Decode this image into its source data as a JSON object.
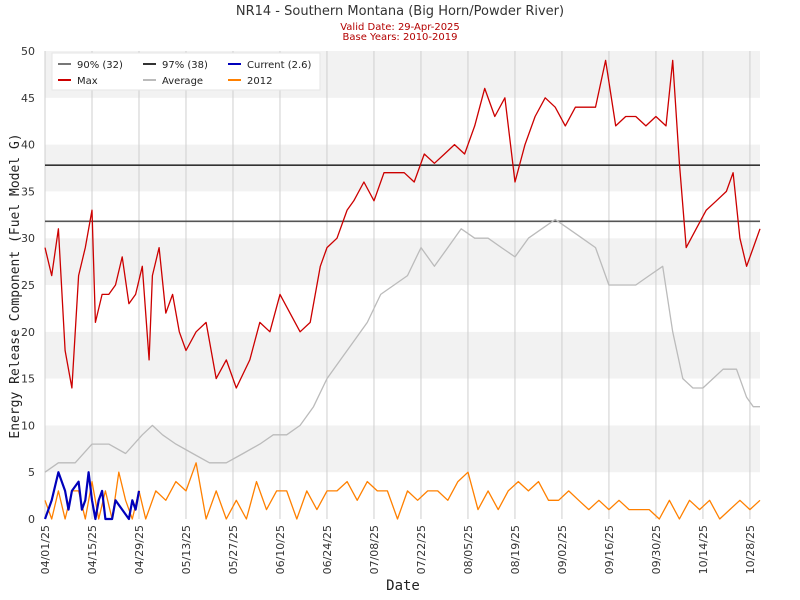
{
  "chart_data": {
    "type": "line",
    "title": "NR14 - Southern Montana (Big Horn/Powder River)",
    "subtitle_lines": [
      "Valid Date: 29-Apr-2025",
      "Base Years: 2010-2019"
    ],
    "xlabel": "Date",
    "ylabel": "Energy Release Component (Fuel Model G)",
    "x_ticks": [
      "04/01/25",
      "04/15/25",
      "04/29/25",
      "05/13/25",
      "05/27/25",
      "06/10/25",
      "06/24/25",
      "07/08/25",
      "07/22/25",
      "08/05/25",
      "08/19/25",
      "09/02/25",
      "09/16/25",
      "09/30/25",
      "10/14/25",
      "10/28/25"
    ],
    "y_ticks": [
      0,
      5,
      10,
      15,
      20,
      25,
      30,
      35,
      40,
      45,
      50
    ],
    "ylim": [
      0,
      50
    ],
    "x_start": "2025-04-01",
    "x_end": "2025-10-31",
    "grid": true,
    "legend_position": "top-left",
    "thresholds": [
      {
        "name": "90% (32)",
        "value": 31.8,
        "color": "#555555"
      },
      {
        "name": "97% (38)",
        "value": 37.8,
        "color": "#333333"
      }
    ],
    "legend": [
      {
        "name": "90% (32)",
        "color": "#777777"
      },
      {
        "name": "97% (38)",
        "color": "#333333"
      },
      {
        "name": "Current (2.6)",
        "color": "#0000bb"
      },
      {
        "name": "Max",
        "color": "#cc0000"
      },
      {
        "name": "Average",
        "color": "#bbbbbb"
      },
      {
        "name": "2012",
        "color": "#ff8000"
      }
    ],
    "series": [
      {
        "name": "Max",
        "color": "#cc0000",
        "points": [
          [
            "04/01/25",
            29
          ],
          [
            "04/03/25",
            26
          ],
          [
            "04/05/25",
            31
          ],
          [
            "04/07/25",
            18
          ],
          [
            "04/09/25",
            14
          ],
          [
            "04/11/25",
            26
          ],
          [
            "04/13/25",
            29
          ],
          [
            "04/15/25",
            33
          ],
          [
            "04/16/25",
            21
          ],
          [
            "04/18/25",
            24
          ],
          [
            "04/20/25",
            24
          ],
          [
            "04/22/25",
            25
          ],
          [
            "04/24/25",
            28
          ],
          [
            "04/26/25",
            23
          ],
          [
            "04/28/25",
            24
          ],
          [
            "04/30/25",
            27
          ],
          [
            "05/02/25",
            17
          ],
          [
            "05/03/25",
            26
          ],
          [
            "05/05/25",
            29
          ],
          [
            "05/07/25",
            22
          ],
          [
            "05/09/25",
            24
          ],
          [
            "05/11/25",
            20
          ],
          [
            "05/13/25",
            18
          ],
          [
            "05/16/25",
            20
          ],
          [
            "05/19/25",
            21
          ],
          [
            "05/22/25",
            15
          ],
          [
            "05/25/25",
            17
          ],
          [
            "05/28/25",
            14
          ],
          [
            "06/01/25",
            17
          ],
          [
            "06/04/25",
            21
          ],
          [
            "06/07/25",
            20
          ],
          [
            "06/10/25",
            24
          ],
          [
            "06/13/25",
            22
          ],
          [
            "06/16/25",
            20
          ],
          [
            "06/19/25",
            21
          ],
          [
            "06/22/25",
            27
          ],
          [
            "06/24/25",
            29
          ],
          [
            "06/27/25",
            30
          ],
          [
            "06/30/25",
            33
          ],
          [
            "07/02/25",
            34
          ],
          [
            "07/05/25",
            36
          ],
          [
            "07/08/25",
            34
          ],
          [
            "07/11/25",
            37
          ],
          [
            "07/14/25",
            37
          ],
          [
            "07/17/25",
            37
          ],
          [
            "07/20/25",
            36
          ],
          [
            "07/23/25",
            39
          ],
          [
            "07/26/25",
            38
          ],
          [
            "07/29/25",
            39
          ],
          [
            "08/01/25",
            40
          ],
          [
            "08/04/25",
            39
          ],
          [
            "08/07/25",
            42
          ],
          [
            "08/10/25",
            46
          ],
          [
            "08/13/25",
            43
          ],
          [
            "08/16/25",
            45
          ],
          [
            "08/19/25",
            36
          ],
          [
            "08/22/25",
            40
          ],
          [
            "08/25/25",
            43
          ],
          [
            "08/28/25",
            45
          ],
          [
            "08/31/25",
            44
          ],
          [
            "09/03/25",
            42
          ],
          [
            "09/06/25",
            44
          ],
          [
            "09/09/25",
            44
          ],
          [
            "09/12/25",
            44
          ],
          [
            "09/15/25",
            49
          ],
          [
            "09/18/25",
            42
          ],
          [
            "09/21/25",
            43
          ],
          [
            "09/24/25",
            43
          ],
          [
            "09/27/25",
            42
          ],
          [
            "09/30/25",
            43
          ],
          [
            "10/03/25",
            42
          ],
          [
            "10/05/25",
            49
          ],
          [
            "10/07/25",
            38
          ],
          [
            "10/09/25",
            29
          ],
          [
            "10/12/25",
            31
          ],
          [
            "10/15/25",
            33
          ],
          [
            "10/18/25",
            34
          ],
          [
            "10/21/25",
            35
          ],
          [
            "10/23/25",
            37
          ],
          [
            "10/25/25",
            30
          ],
          [
            "10/27/25",
            27
          ],
          [
            "10/29/25",
            29
          ],
          [
            "10/31/25",
            31
          ]
        ]
      },
      {
        "name": "Average",
        "color": "#bbbbbb",
        "points": [
          [
            "04/01/25",
            5
          ],
          [
            "04/05/25",
            6
          ],
          [
            "04/10/25",
            6
          ],
          [
            "04/15/25",
            8
          ],
          [
            "04/20/25",
            8
          ],
          [
            "04/25/25",
            7
          ],
          [
            "04/30/25",
            9
          ],
          [
            "05/03/25",
            10
          ],
          [
            "05/06/25",
            9
          ],
          [
            "05/10/25",
            8
          ],
          [
            "05/15/25",
            7
          ],
          [
            "05/20/25",
            6
          ],
          [
            "05/25/25",
            6
          ],
          [
            "05/30/25",
            7
          ],
          [
            "06/04/25",
            8
          ],
          [
            "06/08/25",
            9
          ],
          [
            "06/12/25",
            9
          ],
          [
            "06/16/25",
            10
          ],
          [
            "06/20/25",
            12
          ],
          [
            "06/24/25",
            15
          ],
          [
            "06/28/25",
            17
          ],
          [
            "07/02/25",
            19
          ],
          [
            "07/06/25",
            21
          ],
          [
            "07/10/25",
            24
          ],
          [
            "07/14/25",
            25
          ],
          [
            "07/18/25",
            26
          ],
          [
            "07/22/25",
            29
          ],
          [
            "07/26/25",
            27
          ],
          [
            "07/30/25",
            29
          ],
          [
            "08/03/25",
            31
          ],
          [
            "08/07/25",
            30
          ],
          [
            "08/11/25",
            30
          ],
          [
            "08/15/25",
            29
          ],
          [
            "08/19/25",
            28
          ],
          [
            "08/23/25",
            30
          ],
          [
            "08/27/25",
            31
          ],
          [
            "08/31/25",
            32
          ],
          [
            "09/04/25",
            31
          ],
          [
            "09/08/25",
            30
          ],
          [
            "09/12/25",
            29
          ],
          [
            "09/16/25",
            25
          ],
          [
            "09/20/25",
            25
          ],
          [
            "09/24/25",
            25
          ],
          [
            "09/28/25",
            26
          ],
          [
            "10/02/25",
            27
          ],
          [
            "10/05/25",
            20
          ],
          [
            "10/08/25",
            15
          ],
          [
            "10/11/25",
            14
          ],
          [
            "10/14/25",
            14
          ],
          [
            "10/17/25",
            15
          ],
          [
            "10/20/25",
            16
          ],
          [
            "10/24/25",
            16
          ],
          [
            "10/27/25",
            13
          ],
          [
            "10/29/25",
            12
          ],
          [
            "10/31/25",
            12
          ]
        ]
      },
      {
        "name": "2012",
        "color": "#ff8000",
        "points": [
          [
            "04/01/25",
            2
          ],
          [
            "04/03/25",
            0
          ],
          [
            "04/05/25",
            3
          ],
          [
            "04/07/25",
            0
          ],
          [
            "04/09/25",
            3
          ],
          [
            "04/11/25",
            3
          ],
          [
            "04/13/25",
            0
          ],
          [
            "04/15/25",
            4
          ],
          [
            "04/17/25",
            0
          ],
          [
            "04/19/25",
            3
          ],
          [
            "04/21/25",
            0
          ],
          [
            "04/23/25",
            5
          ],
          [
            "04/25/25",
            2
          ],
          [
            "04/27/25",
            0
          ],
          [
            "04/29/25",
            3
          ],
          [
            "05/01/25",
            0
          ],
          [
            "05/04/25",
            3
          ],
          [
            "05/07/25",
            2
          ],
          [
            "05/10/25",
            4
          ],
          [
            "05/13/25",
            3
          ],
          [
            "05/16/25",
            6
          ],
          [
            "05/19/25",
            0
          ],
          [
            "05/22/25",
            3
          ],
          [
            "05/25/25",
            0
          ],
          [
            "05/28/25",
            2
          ],
          [
            "05/31/25",
            0
          ],
          [
            "06/03/25",
            4
          ],
          [
            "06/06/25",
            1
          ],
          [
            "06/09/25",
            3
          ],
          [
            "06/12/25",
            3
          ],
          [
            "06/15/25",
            0
          ],
          [
            "06/18/25",
            3
          ],
          [
            "06/21/25",
            1
          ],
          [
            "06/24/25",
            3
          ],
          [
            "06/27/25",
            3
          ],
          [
            "06/30/25",
            4
          ],
          [
            "07/03/25",
            2
          ],
          [
            "07/06/25",
            4
          ],
          [
            "07/09/25",
            3
          ],
          [
            "07/12/25",
            3
          ],
          [
            "07/15/25",
            0
          ],
          [
            "07/18/25",
            3
          ],
          [
            "07/21/25",
            2
          ],
          [
            "07/24/25",
            3
          ],
          [
            "07/27/25",
            3
          ],
          [
            "07/30/25",
            2
          ],
          [
            "08/02/25",
            4
          ],
          [
            "08/05/25",
            5
          ],
          [
            "08/08/25",
            1
          ],
          [
            "08/11/25",
            3
          ],
          [
            "08/14/25",
            1
          ],
          [
            "08/17/25",
            3
          ],
          [
            "08/20/25",
            4
          ],
          [
            "08/23/25",
            3
          ],
          [
            "08/26/25",
            4
          ],
          [
            "08/29/25",
            2
          ],
          [
            "09/01/25",
            2
          ],
          [
            "09/04/25",
            3
          ],
          [
            "09/07/25",
            2
          ],
          [
            "09/10/25",
            1
          ],
          [
            "09/13/25",
            2
          ],
          [
            "09/16/25",
            1
          ],
          [
            "09/19/25",
            2
          ],
          [
            "09/22/25",
            1
          ],
          [
            "09/25/25",
            1
          ],
          [
            "09/28/25",
            1
          ],
          [
            "10/01/25",
            0
          ],
          [
            "10/04/25",
            2
          ],
          [
            "10/07/25",
            0
          ],
          [
            "10/10/25",
            2
          ],
          [
            "10/13/25",
            1
          ],
          [
            "10/16/25",
            2
          ],
          [
            "10/19/25",
            0
          ],
          [
            "10/22/25",
            1
          ],
          [
            "10/25/25",
            2
          ],
          [
            "10/28/25",
            1
          ],
          [
            "10/31/25",
            2
          ]
        ]
      },
      {
        "name": "Current (2.6)",
        "color": "#0000bb",
        "points": [
          [
            "04/01/25",
            0
          ],
          [
            "04/03/25",
            2
          ],
          [
            "04/05/25",
            5
          ],
          [
            "04/07/25",
            3
          ],
          [
            "04/08/25",
            1
          ],
          [
            "04/09/25",
            3
          ],
          [
            "04/11/25",
            4
          ],
          [
            "04/12/25",
            1
          ],
          [
            "04/13/25",
            2
          ],
          [
            "04/14/25",
            5
          ],
          [
            "04/15/25",
            2
          ],
          [
            "04/16/25",
            0
          ],
          [
            "04/17/25",
            2
          ],
          [
            "04/18/25",
            3
          ],
          [
            "04/19/25",
            0
          ],
          [
            "04/21/25",
            0
          ],
          [
            "04/22/25",
            2
          ],
          [
            "04/24/25",
            1
          ],
          [
            "04/26/25",
            0
          ],
          [
            "04/27/25",
            2
          ],
          [
            "04/28/25",
            1
          ],
          [
            "04/29/25",
            3
          ]
        ]
      }
    ]
  }
}
